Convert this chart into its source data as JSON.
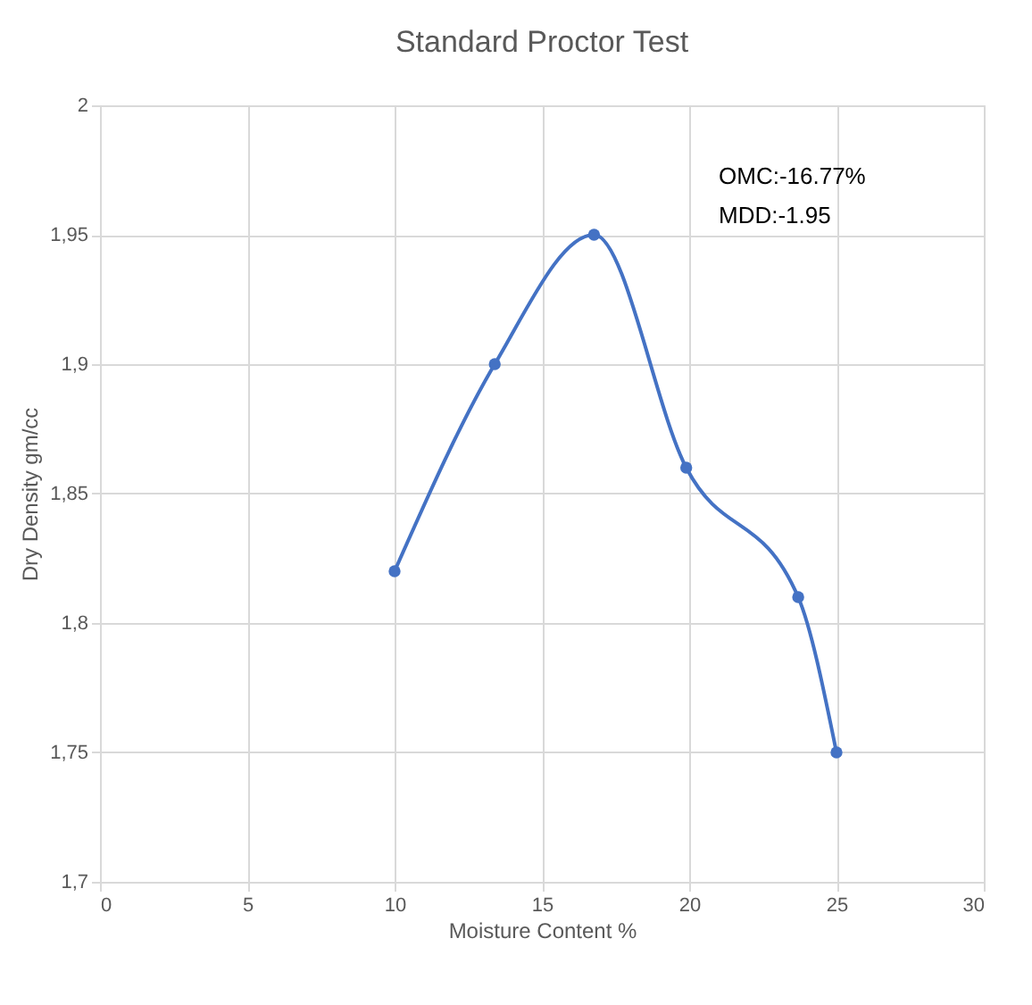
{
  "chart_data": {
    "type": "line",
    "title": "Standard Proctor Test",
    "xlabel": "Moisture Content %",
    "ylabel": "Dry Density gm/cc",
    "x": [
      10,
      13.4,
      16.77,
      19.9,
      23.7,
      25
    ],
    "series": [
      {
        "color": "#4472c4",
        "values": [
          1.82,
          1.9,
          1.95,
          1.86,
          1.81,
          1.75
        ]
      }
    ],
    "xlim": [
      0,
      30
    ],
    "xticks": [
      0,
      5,
      10,
      15,
      20,
      25,
      30
    ],
    "ylim": [
      1.7,
      2
    ],
    "yticks": [
      {
        "value": 1.7,
        "label": "1,7"
      },
      {
        "value": 1.75,
        "label": "1,75"
      },
      {
        "value": 1.8,
        "label": "1,8"
      },
      {
        "value": 1.85,
        "label": "1,85"
      },
      {
        "value": 1.9,
        "label": "1,9"
      },
      {
        "value": 1.95,
        "label": "1,95"
      },
      {
        "value": 2,
        "label": "2"
      }
    ],
    "grid": true,
    "marker": "circle",
    "line_style": "solid",
    "annotations": [
      "OMC:-16.77%",
      "MDD:-1.95"
    ]
  }
}
